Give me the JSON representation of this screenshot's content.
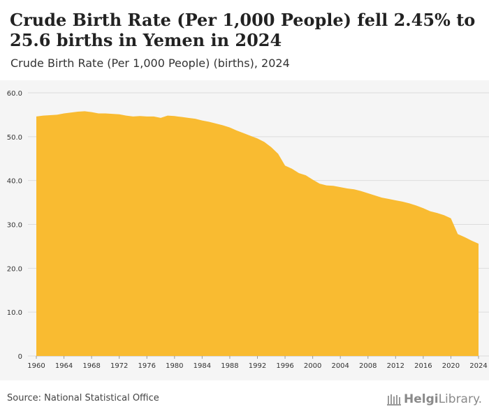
{
  "header": {
    "title": "Crude Birth Rate (Per 1,000 People) fell 2.45% to 25.6 births in Yemen in 2024",
    "subtitle": "Crude Birth Rate (Per 1,000 People) (births), 2024"
  },
  "footer": {
    "source": "Source: National Statistical Office",
    "logo_bold": "Helgi",
    "logo_light": "Library."
  },
  "colors": {
    "area": "#f9bb31",
    "grid": "#dcdcdc",
    "background": "#f5f5f5",
    "axis_text": "#333333"
  },
  "chart_data": {
    "type": "area",
    "ylim": [
      0,
      60
    ],
    "y_ticks": [
      0,
      10,
      20,
      30,
      40,
      50,
      60
    ],
    "y_tick_labels": [
      "0",
      "10.0",
      "20.0",
      "30.0",
      "40.0",
      "50.0",
      "60.0"
    ],
    "x_ticks": [
      1960,
      1964,
      1968,
      1972,
      1976,
      1980,
      1984,
      1988,
      1992,
      1996,
      2000,
      2004,
      2008,
      2012,
      2016,
      2020,
      2024
    ],
    "grid": true,
    "series": [
      {
        "x": [
          1960,
          1961,
          1962,
          1963,
          1964,
          1965,
          1966,
          1967,
          1968,
          1969,
          1970,
          1971,
          1972,
          1973,
          1974,
          1975,
          1976,
          1977,
          1978,
          1979,
          1980,
          1981,
          1982,
          1983,
          1984,
          1985,
          1986,
          1987,
          1988,
          1989,
          1990,
          1991,
          1992,
          1993,
          1994,
          1995,
          1996,
          1997,
          1998,
          1999,
          2000,
          2001,
          2002,
          2003,
          2004,
          2005,
          2006,
          2007,
          2008,
          2009,
          2010,
          2011,
          2012,
          2013,
          2014,
          2015,
          2016,
          2017,
          2018,
          2019,
          2020,
          2021,
          2022,
          2023,
          2024
        ],
        "values": [
          54.6,
          54.8,
          54.9,
          55.0,
          55.3,
          55.5,
          55.7,
          55.8,
          55.6,
          55.3,
          55.3,
          55.2,
          55.1,
          54.8,
          54.6,
          54.7,
          54.6,
          54.6,
          54.3,
          54.8,
          54.7,
          54.5,
          54.3,
          54.1,
          53.7,
          53.4,
          53.0,
          52.6,
          52.1,
          51.4,
          50.8,
          50.2,
          49.6,
          48.8,
          47.6,
          46.1,
          43.4,
          42.7,
          41.7,
          41.2,
          40.2,
          39.3,
          38.9,
          38.8,
          38.5,
          38.2,
          38.0,
          37.6,
          37.1,
          36.6,
          36.1,
          35.8,
          35.5,
          35.2,
          34.8,
          34.3,
          33.7,
          33.0,
          32.6,
          32.1,
          31.4,
          27.8,
          27.1,
          26.3,
          25.6
        ]
      }
    ]
  }
}
